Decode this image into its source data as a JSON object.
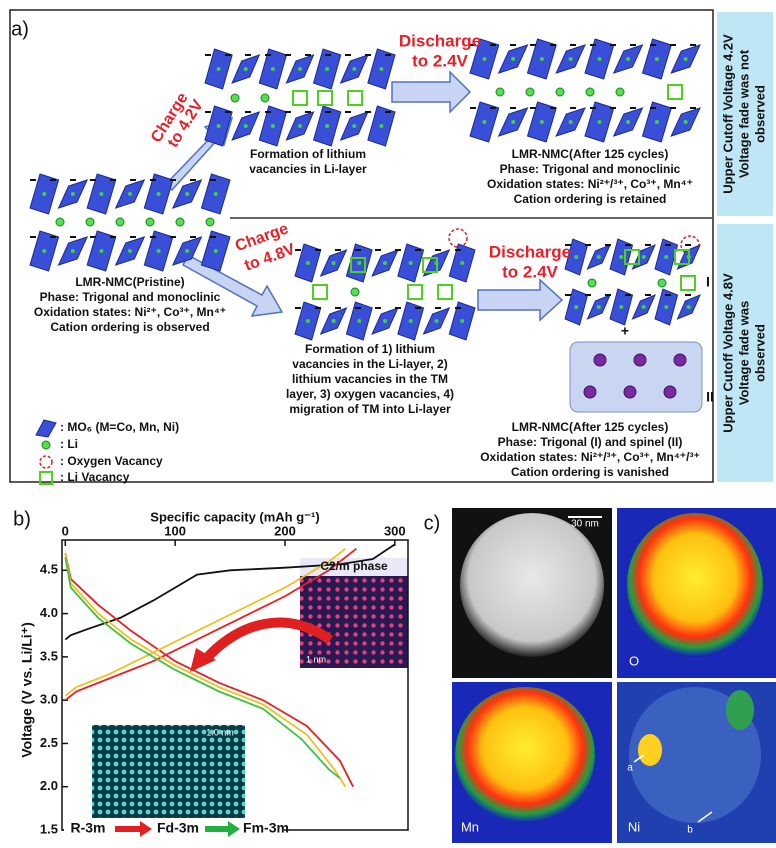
{
  "panel_a": {
    "label": "a)",
    "charge_42": [
      "Charge",
      "to 4.2V"
    ],
    "step1_text": [
      "Formation of lithium",
      "vacancies in Li-layer"
    ],
    "discharge_top": [
      "Discharge",
      "to 2.4V"
    ],
    "after_42": [
      "LMR-NMC(After 125 cycles)",
      "Phase: Trigonal and monoclinic",
      "Oxidation states: Ni²⁺/³⁺, Co³⁺, Mn⁴⁺",
      "Cation ordering  is retained"
    ],
    "side_42": [
      "Upper Cutoff Voltage 4.2V",
      "Voltage fade was not",
      "observed"
    ],
    "pristine": [
      "LMR-NMC(Pristine)",
      "Phase: Trigonal and monoclinic",
      "Oxidation states: Ni²⁺, Co³⁺, Mn⁴⁺",
      "Cation ordering  is observed"
    ],
    "charge_48": [
      "Charge",
      "to 4.8V"
    ],
    "step2_text": [
      "Formation of 1) lithium",
      " vacancies in the Li-layer, 2)",
      "lithium vacancies in the TM",
      "layer, 3) oxygen vacancies, 4)",
      "migration of TM into Li-layer"
    ],
    "discharge_bottom": [
      "Discharge",
      "to 2.4V"
    ],
    "phase_marks": [
      "I",
      "+",
      "II"
    ],
    "after_48": [
      "LMR-NMC(After 125 cycles)",
      "Phase: Trigonal (I) and spinel (II)",
      "Oxidation states: Ni²⁺/³⁺, Co³⁺, Mn⁴⁺/³⁺",
      "Cation ordering  is vanished"
    ],
    "side_48": [
      "Upper Cutoff Voltage 4.8V",
      "Voltage fade was",
      "observed"
    ],
    "legend": [
      ": MO₆  (M=Co, Mn, Ni)",
      ": Li",
      ": Oxygen Vacancy",
      ": Li Vacancy"
    ]
  },
  "panel_b": {
    "label": "b)",
    "inset_top": "C2/m phase",
    "inset_top_scale": "1 nm",
    "inset_bottom_scale": "1.0 nm",
    "phases": [
      "R-3m",
      "Fd-3m",
      "Fm-3m"
    ]
  },
  "chart_data": {
    "type": "line",
    "x_label": "Specific capacity (mAh g⁻¹)",
    "y_label": "Voltage (V vs. Li/Li⁺)",
    "xlim": [
      -3,
      312
    ],
    "xticks": [
      0,
      100,
      200,
      300
    ],
    "ylim": [
      1.5,
      4.85
    ],
    "yticks": [
      1.5,
      {
        "value": 2,
        "label": "2.0"
      },
      2.5,
      {
        "value": 3,
        "label": "3.0"
      },
      3.5,
      {
        "value": 4,
        "label": "4.0"
      },
      4.5
    ],
    "series": [
      {
        "color": "#111111",
        "x": [
          0,
          5,
          20,
          50,
          80,
          100,
          120,
          150,
          200,
          250,
          280,
          300
        ],
        "values": [
          3.7,
          3.75,
          3.82,
          3.95,
          4.15,
          4.3,
          4.45,
          4.5,
          4.53,
          4.57,
          4.63,
          4.8
        ]
      },
      {
        "color": "#e82020",
        "x": [
          0,
          10,
          40,
          80,
          120,
          160,
          200,
          240,
          265
        ],
        "values": [
          3.0,
          3.1,
          3.25,
          3.45,
          3.7,
          3.95,
          4.2,
          4.5,
          4.75
        ]
      },
      {
        "color": "#e82020",
        "x": [
          0,
          5,
          30,
          60,
          100,
          140,
          180,
          220,
          250,
          262
        ],
        "values": [
          4.7,
          4.4,
          4.1,
          3.8,
          3.45,
          3.2,
          3.0,
          2.7,
          2.3,
          2.0
        ]
      },
      {
        "color": "#f0c020",
        "x": [
          0,
          10,
          40,
          80,
          120,
          160,
          200,
          240,
          255
        ],
        "values": [
          3.05,
          3.15,
          3.3,
          3.55,
          3.8,
          4.05,
          4.3,
          4.6,
          4.75
        ]
      },
      {
        "color": "#f0c020",
        "x": [
          0,
          5,
          30,
          60,
          100,
          140,
          180,
          220,
          245,
          255
        ],
        "values": [
          4.7,
          4.35,
          4.0,
          3.7,
          3.4,
          3.15,
          2.95,
          2.6,
          2.2,
          2.0
        ]
      },
      {
        "color": "#40c040",
        "x": [
          0,
          5,
          30,
          60,
          100,
          140,
          180,
          215,
          240,
          250
        ],
        "values": [
          4.65,
          4.3,
          3.95,
          3.65,
          3.35,
          3.1,
          2.9,
          2.55,
          2.2,
          2.1
        ]
      }
    ]
  },
  "panel_c": {
    "label": "c)",
    "scale": "30 nm",
    "maps": [
      "O",
      "Mn",
      "Ni"
    ],
    "markers": [
      "a",
      "b"
    ]
  }
}
